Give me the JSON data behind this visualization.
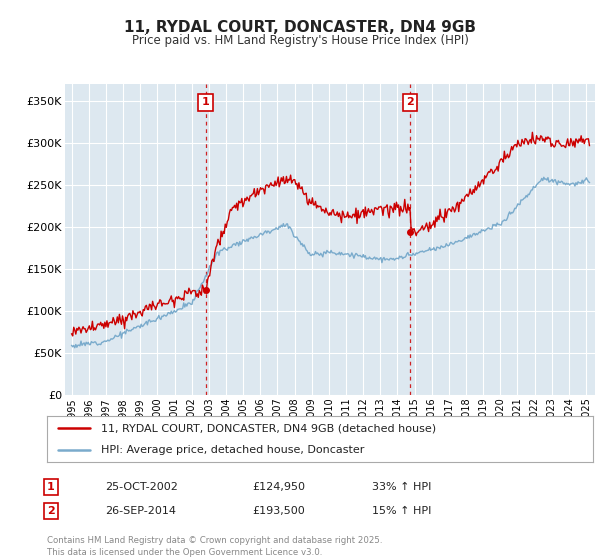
{
  "title": "11, RYDAL COURT, DONCASTER, DN4 9GB",
  "subtitle": "Price paid vs. HM Land Registry's House Price Index (HPI)",
  "ylabel_ticks": [
    "£0",
    "£50K",
    "£100K",
    "£150K",
    "£200K",
    "£250K",
    "£300K",
    "£350K"
  ],
  "ytick_vals": [
    0,
    50000,
    100000,
    150000,
    200000,
    250000,
    300000,
    350000
  ],
  "ylim": [
    0,
    370000
  ],
  "xlim_start": 1994.6,
  "xlim_end": 2025.5,
  "sale1": {
    "date_num": 2002.81,
    "price": 124950,
    "label": "1",
    "pct": "33% ↑ HPI",
    "date_str": "25-OCT-2002"
  },
  "sale2": {
    "date_num": 2014.73,
    "price": 193500,
    "label": "2",
    "pct": "15% ↑ HPI",
    "date_str": "26-SEP-2014"
  },
  "legend_red": "11, RYDAL COURT, DONCASTER, DN4 9GB (detached house)",
  "legend_blue": "HPI: Average price, detached house, Doncaster",
  "footer": "Contains HM Land Registry data © Crown copyright and database right 2025.\nThis data is licensed under the Open Government Licence v3.0.",
  "red_color": "#cc0000",
  "blue_color": "#7aabcc",
  "bg_chart": "#dde8f0",
  "bg_figure": "#ffffff",
  "grid_color": "#ffffff",
  "sale1_price_str": "£124,950",
  "sale2_price_str": "£193,500"
}
